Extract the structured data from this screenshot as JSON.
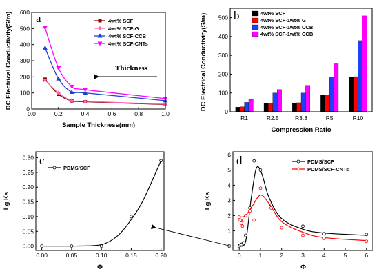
{
  "chart_data": [
    {
      "panel_label": "a",
      "type": "line",
      "xlabel": "Sample Thickness(mm)",
      "ylabel": "DC Electrical Conductivity(S/m)",
      "xlim": [
        0.0,
        1.0
      ],
      "ylim": [
        0,
        600
      ],
      "xticks": [
        "0.0",
        "0.2",
        "0.4",
        "0.6",
        "0.8",
        "1.0"
      ],
      "yticks": [
        "0",
        "100",
        "200",
        "300",
        "400",
        "500",
        "600"
      ],
      "annotation": "Thickness",
      "legend_position": "top-right",
      "series": [
        {
          "name": "4wt% SCF",
          "color": "#8b0000",
          "marker": "square",
          "x": [
            0.1,
            0.2,
            0.3,
            0.4,
            1.0
          ],
          "y": [
            185,
            92,
            50,
            45,
            28
          ]
        },
        {
          "name": "4wt% SCF-G",
          "color": "#ff66aa",
          "marker": "star",
          "x": [
            0.1,
            0.2,
            0.3,
            0.4,
            1.0
          ],
          "y": [
            180,
            100,
            52,
            48,
            30
          ]
        },
        {
          "name": "4wt% SCF-CCB",
          "color": "#1f3fd0",
          "marker": "triangle",
          "x": [
            0.1,
            0.2,
            0.3,
            0.4,
            1.0
          ],
          "y": [
            380,
            188,
            105,
            100,
            52
          ]
        },
        {
          "name": "4wt% SCF-CNTs",
          "color": "#ff00ff",
          "marker": "triangle-down",
          "x": [
            0.1,
            0.2,
            0.3,
            0.4,
            1.0
          ],
          "y": [
            505,
            255,
            140,
            120,
            65
          ]
        }
      ]
    },
    {
      "panel_label": "b",
      "type": "bar",
      "xlabel": "Compression Ratio",
      "ylabel": "DC Electrical Conductivity(S/m)",
      "ylim": [
        0,
        550
      ],
      "yticks": [
        "0",
        "100",
        "200",
        "300",
        "400",
        "500"
      ],
      "categories": [
        "R1",
        "R2.5",
        "R3.3",
        "R5",
        "R10"
      ],
      "legend_position": "top-left",
      "series": [
        {
          "name": "4wt% SCF",
          "color": "#000000",
          "values": [
            25,
            45,
            45,
            88,
            185
          ]
        },
        {
          "name": "4wt% SCF-1wt% G",
          "color": "#ff0000",
          "values": [
            27,
            47,
            48,
            90,
            187
          ]
        },
        {
          "name": "4wt% SCF-1wt% CCB",
          "color": "#1f3fff",
          "values": [
            50,
            100,
            100,
            185,
            378
          ]
        },
        {
          "name": "4wt% SCF-1wt% CCB",
          "color": "#ff00ff",
          "values": [
            65,
            118,
            140,
            255,
            510
          ]
        }
      ]
    },
    {
      "panel_label": "c",
      "type": "line",
      "xlabel": "Φ",
      "ylabel": "Lg Ks",
      "xlim": [
        -0.01,
        0.205
      ],
      "ylim": [
        -0.015,
        0.32
      ],
      "xticks": [
        "0.00",
        "0.05",
        "0.10",
        "0.15",
        "0.20"
      ],
      "yticks": [
        "0.00",
        "0.05",
        "0.10",
        "0.15",
        "0.20",
        "0.25",
        "0.30"
      ],
      "legend_position": "top-left",
      "series": [
        {
          "name": "PDMS/SCF",
          "color": "#000000",
          "marker": "circle-open",
          "x": [
            0.0,
            0.05,
            0.1,
            0.15,
            0.2
          ],
          "y": [
            0.0,
            0.0,
            0.0,
            0.1,
            0.29
          ]
        }
      ]
    },
    {
      "panel_label": "d",
      "type": "line",
      "xlabel": "Φ",
      "ylabel": "Lg Ks",
      "xlim": [
        -0.3,
        6.3
      ],
      "ylim": [
        -0.3,
        6.2
      ],
      "xticks": [
        "0",
        "1",
        "2",
        "3",
        "4",
        "5",
        "6"
      ],
      "yticks": [
        "0",
        "1",
        "2",
        "3",
        "4",
        "5",
        "6"
      ],
      "legend_position": "top-right",
      "series": [
        {
          "name": "PDMS/SCF",
          "color": "#000000",
          "marker": "circle-open",
          "x": [
            0.0,
            0.05,
            0.1,
            0.2,
            0.3,
            0.5,
            0.7,
            1.0,
            1.5,
            2.0,
            3.0,
            4.0,
            6.0
          ],
          "y": [
            0.0,
            0.05,
            0.1,
            0.2,
            0.7,
            2.5,
            5.6,
            5.0,
            2.7,
            1.7,
            1.3,
            0.8,
            0.75
          ]
        },
        {
          "name": "PDMS/SCF-CNTs",
          "color": "#ff0000",
          "marker": "circle-open",
          "x": [
            0.0,
            0.05,
            0.1,
            0.15,
            0.2,
            0.3,
            0.5,
            0.7,
            1.0,
            1.5,
            2.0,
            3.0,
            4.0,
            6.0
          ],
          "y": [
            1.9,
            1.7,
            1.5,
            1.3,
            1.7,
            2.0,
            2.3,
            1.7,
            3.8,
            2.5,
            1.2,
            0.7,
            0.5,
            0.3
          ]
        }
      ]
    }
  ]
}
